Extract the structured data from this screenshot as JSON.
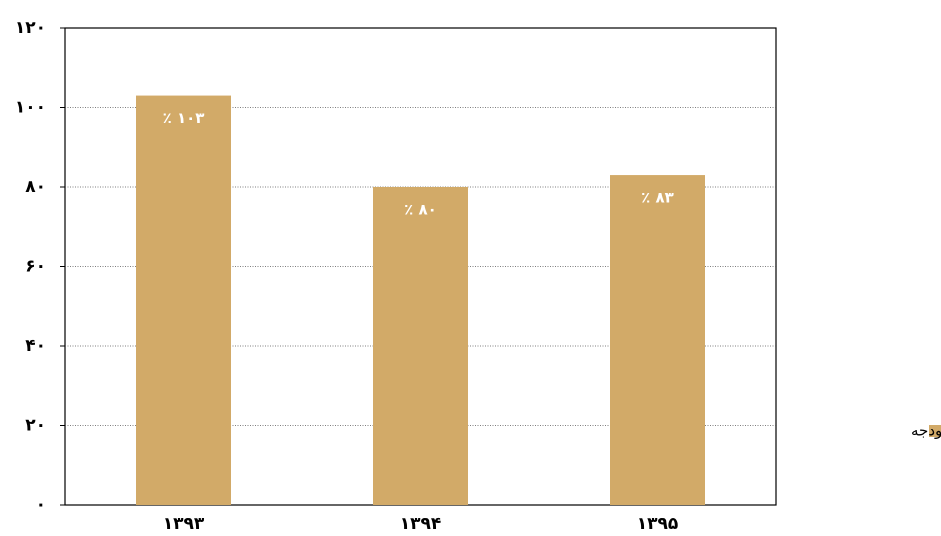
{
  "chart_data": {
    "type": "bar",
    "categories": [
      "۱۳۹۳",
      "۱۳۹۴",
      "۱۳۹۵"
    ],
    "series": [
      {
        "name": "کسری بودجه",
        "color": "#d2aa68",
        "values": [
          103,
          80,
          83
        ],
        "value_labels": [
          "٪ ۱۰۳",
          "٪ ۸۰",
          "٪ ۸۳"
        ]
      }
    ],
    "ylim": [
      0,
      120
    ],
    "yticks": [
      {
        "value": 0,
        "label": "۰"
      },
      {
        "value": 20,
        "label": "۲۰"
      },
      {
        "value": 40,
        "label": "۴۰"
      },
      {
        "value": 60,
        "label": "۶۰"
      },
      {
        "value": 80,
        "label": "۸۰"
      },
      {
        "value": 100,
        "label": "۱۰۰"
      },
      {
        "value": 120,
        "label": "۱۲۰"
      }
    ],
    "grid": true,
    "legend": "right"
  }
}
